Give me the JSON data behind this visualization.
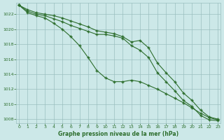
{
  "x": [
    0,
    1,
    2,
    3,
    4,
    5,
    6,
    7,
    8,
    9,
    10,
    11,
    12,
    13,
    14,
    15,
    16,
    17,
    18,
    19,
    20,
    21,
    22,
    23
  ],
  "line1": [
    1023.2,
    1022.6,
    1022.2,
    1022.0,
    1021.8,
    1021.5,
    1021.1,
    1020.7,
    1020.3,
    1019.8,
    1019.6,
    1019.4,
    1019.0,
    1018.3,
    1018.5,
    1017.5,
    1015.5,
    1014.2,
    1013.0,
    1011.5,
    1010.5,
    1009.2,
    1008.3,
    1008.0
  ],
  "line2": [
    1023.2,
    1022.4,
    1022.0,
    1021.8,
    1021.4,
    1021.0,
    1020.5,
    1020.1,
    1019.7,
    1019.3,
    1019.3,
    1019.1,
    1018.8,
    1017.8,
    1017.2,
    1016.2,
    1014.2,
    1013.0,
    1011.8,
    1010.5,
    1009.7,
    1008.5,
    1007.9,
    1007.8
  ],
  "line3": [
    1023.2,
    1022.2,
    1021.8,
    1021.5,
    1020.8,
    1020.0,
    1019.0,
    1017.8,
    1016.2,
    1014.5,
    1013.5,
    1013.0,
    1013.0,
    1013.2,
    1013.0,
    1012.5,
    1012.0,
    1011.4,
    1010.8,
    1010.2,
    1009.5,
    1008.8,
    1008.2,
    1007.9
  ],
  "line_color": "#2d6e2d",
  "bg_color": "#cce8e8",
  "grid_color": "#9bbfbf",
  "xlabel": "Graphe pression niveau de la mer (hPa)",
  "ylim": [
    1007.5,
    1023.5
  ],
  "yticks": [
    1008,
    1010,
    1012,
    1014,
    1016,
    1018,
    1020,
    1022
  ],
  "xticks": [
    0,
    1,
    2,
    3,
    4,
    5,
    6,
    7,
    8,
    9,
    10,
    11,
    12,
    13,
    14,
    15,
    16,
    17,
    18,
    19,
    20,
    21,
    22,
    23
  ]
}
